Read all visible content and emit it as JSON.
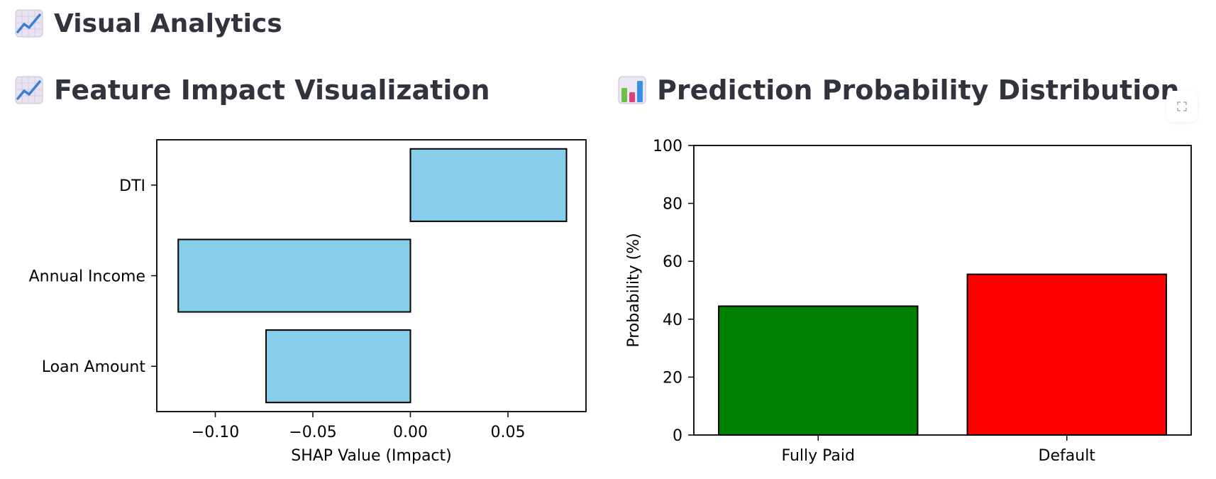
{
  "page": {
    "title": "Visual Analytics",
    "title_icon": "chart-increasing-icon"
  },
  "sections": {
    "left": {
      "title": "Feature Impact Visualization",
      "icon": "chart-increasing-icon"
    },
    "right": {
      "title": "Prediction Probability Distribution",
      "icon": "bar-chart-icon"
    }
  },
  "toolbar": {
    "expand_icon": "fullscreen-icon"
  },
  "chart_data": [
    {
      "type": "bar",
      "orientation": "horizontal",
      "categories": [
        "DTI",
        "Annual Income",
        "Loan Amount"
      ],
      "values": [
        0.08,
        -0.119,
        -0.074
      ],
      "xlabel": "SHAP Value (Impact)",
      "ylabel": "",
      "xlim": [
        -0.13,
        0.09
      ],
      "xticks": [
        -0.1,
        -0.05,
        0.0,
        0.05
      ],
      "xtick_labels": [
        "−0.10",
        "−0.05",
        "0.00",
        "0.05"
      ],
      "grid": false,
      "bar_color": "#87ceeb",
      "edge_color": "#000000"
    },
    {
      "type": "bar",
      "orientation": "vertical",
      "categories": [
        "Fully Paid",
        "Default"
      ],
      "values": [
        44.5,
        55.5
      ],
      "xlabel": "",
      "ylabel": "Probability (%)",
      "ylim": [
        0,
        100
      ],
      "yticks": [
        0,
        20,
        40,
        60,
        80,
        100
      ],
      "ytick_labels": [
        "0",
        "20",
        "40",
        "60",
        "80",
        "100"
      ],
      "grid": false,
      "bar_colors": [
        "#008000",
        "#ff0000"
      ],
      "edge_color": "#000000"
    }
  ]
}
